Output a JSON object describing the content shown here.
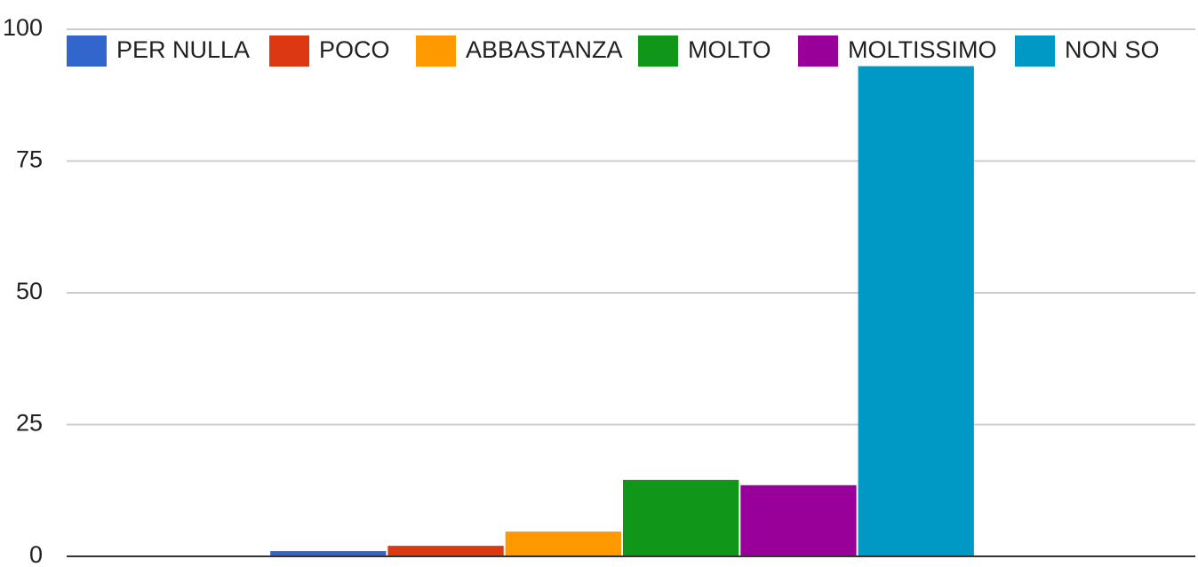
{
  "chart_data": {
    "type": "bar",
    "categories": [
      null
    ],
    "series": [
      {
        "name": "PER NULLA",
        "color": "#3366cc",
        "values": [
          1
        ]
      },
      {
        "name": "POCO",
        "color": "#dc3912",
        "values": [
          2
        ]
      },
      {
        "name": "ABBASTANZA",
        "color": "#ff9900",
        "values": [
          4.7
        ]
      },
      {
        "name": "MOLTO",
        "color": "#109618",
        "values": [
          14.5
        ]
      },
      {
        "name": "MOLTISSIMO",
        "color": "#990099",
        "values": [
          13.5
        ]
      },
      {
        "name": "NON SO",
        "color": "#0099c6",
        "values": [
          93
        ]
      }
    ],
    "ylim": [
      0,
      100
    ],
    "yticks": [
      0,
      25,
      50,
      75,
      100
    ],
    "grid": true,
    "legend": "top"
  }
}
